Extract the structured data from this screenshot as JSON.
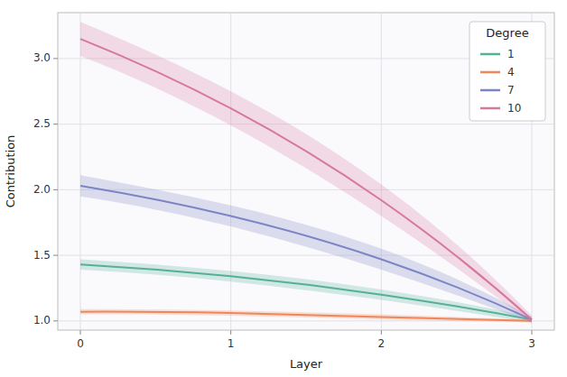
{
  "chart_data": {
    "type": "line",
    "x": [
      0,
      1,
      2,
      3
    ],
    "series": [
      {
        "name": "1",
        "color": "#55b096",
        "values": [
          1.43,
          1.34,
          1.2,
          1.01
        ],
        "errors": [
          0.04,
          0.04,
          0.04,
          0.02
        ]
      },
      {
        "name": "4",
        "color": "#f0875a",
        "values": [
          1.07,
          1.06,
          1.03,
          1.0
        ],
        "errors": [
          0.02,
          0.02,
          0.02,
          0.01
        ]
      },
      {
        "name": "7",
        "color": "#7b85c4",
        "values": [
          2.03,
          1.8,
          1.47,
          1.01
        ],
        "errors": [
          0.08,
          0.08,
          0.08,
          0.02
        ]
      },
      {
        "name": "10",
        "color": "#d6789e",
        "values": [
          3.15,
          2.62,
          1.92,
          1.01
        ],
        "errors": [
          0.13,
          0.13,
          0.12,
          0.03
        ]
      }
    ],
    "x_label": "Layer",
    "y_label": "Contribution",
    "legend_title": "Degree",
    "xlim": [
      -0.15,
      3.15
    ],
    "ylim": [
      0.93,
      3.35
    ],
    "xticks": [
      0,
      1,
      2,
      3
    ],
    "yticks": [
      {
        "value": 1,
        "label": "1.0"
      },
      {
        "value": 1.5,
        "label": "1.5"
      },
      {
        "value": 2,
        "label": "2.0"
      },
      {
        "value": 2.5,
        "label": "2.5"
      },
      {
        "value": 3,
        "label": "3.0"
      }
    ],
    "grid": true,
    "legend": "upper right"
  }
}
